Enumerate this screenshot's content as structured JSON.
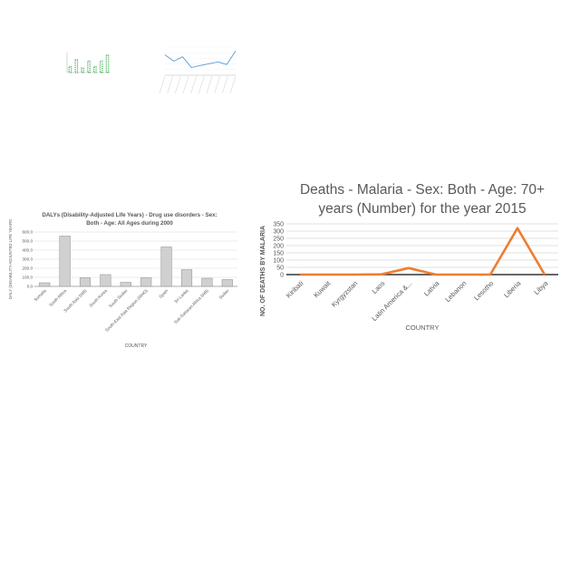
{
  "chart_data": [
    {
      "type": "bar",
      "title": "",
      "xlabel": "",
      "ylabel": "",
      "categories": [
        "",
        "",
        "",
        "",
        "",
        "",
        ""
      ],
      "values": [
        4,
        9,
        3,
        8,
        4,
        8,
        12
      ],
      "ylim": [
        0,
        14
      ],
      "colors": {
        "bar": "#3aa64c",
        "axis": "#bbbbbb"
      }
    },
    {
      "type": "line",
      "title": "",
      "xlabel": "",
      "ylabel": "",
      "categories": [
        "",
        "",
        "",
        "",
        "",
        "",
        "",
        "",
        "",
        ""
      ],
      "values": [
        80,
        55,
        72,
        30,
        38,
        45,
        52,
        42,
        95,
        0
      ],
      "ylim": [
        0,
        110
      ],
      "colors": {
        "line": "#5b9bd5",
        "axis": "#bbbbbb"
      }
    },
    {
      "type": "bar",
      "title_lines": [
        "DALYs (Disability-Adjusted  Life Years) - Drug use disorders  - Sex:",
        "Both - Age: All Ages during  2000"
      ],
      "xlabel": "COUNTRY",
      "ylabel": "DALY (DISABILITY-ADJUSTED LIFE YEARS",
      "categories": [
        "Somalia",
        "South Africa",
        "South Asia (WB)",
        "South Korea",
        "South Sudan",
        "South-East Asia Region (WHO)",
        "Spain",
        "Sri Lanka",
        "Sub-Saharan Africa (WB)",
        "Sudan"
      ],
      "values": [
        40,
        555,
        95,
        130,
        45,
        95,
        435,
        185,
        90,
        75
      ],
      "ylim": [
        0,
        600
      ],
      "yticks": [
        0,
        100,
        200,
        300,
        400,
        500,
        600
      ],
      "ytick_labels": [
        "0.0",
        "100.0",
        "200.0",
        "300.0",
        "400.0",
        "500.0",
        "600.0"
      ],
      "grid": true,
      "colors": {
        "bar_fill": "#d0d0d0",
        "bar_stroke": "#8c8c8c",
        "grid": "#d9d9d9",
        "text": "#595959"
      }
    },
    {
      "type": "line",
      "title_lines": [
        "Deaths - Malaria - Sex: Both - Age: 70+",
        "years (Number) for the year 2015"
      ],
      "xlabel": "COUNTRY",
      "ylabel": "NO. OF DEATHS BY MALARIA",
      "categories": [
        "Kiribati",
        "Kuwait",
        "Kyrgyzstan",
        "Laos",
        "Latin America &...",
        "Latvia",
        "Lebanon",
        "Lesotho",
        "Liberia",
        "Libya"
      ],
      "values": [
        0,
        0,
        0,
        2,
        45,
        0,
        0,
        0,
        320,
        0
      ],
      "ylim": [
        0,
        350
      ],
      "yticks": [
        0,
        50,
        100,
        150,
        200,
        250,
        300,
        350
      ],
      "ytick_labels": [
        "0",
        "50",
        "100",
        "150",
        "200",
        "250",
        "300",
        "350"
      ],
      "grid": true,
      "colors": {
        "line": "#ed7d31",
        "grid": "#d9d9d9",
        "text": "#595959",
        "title": "#595959"
      }
    }
  ]
}
